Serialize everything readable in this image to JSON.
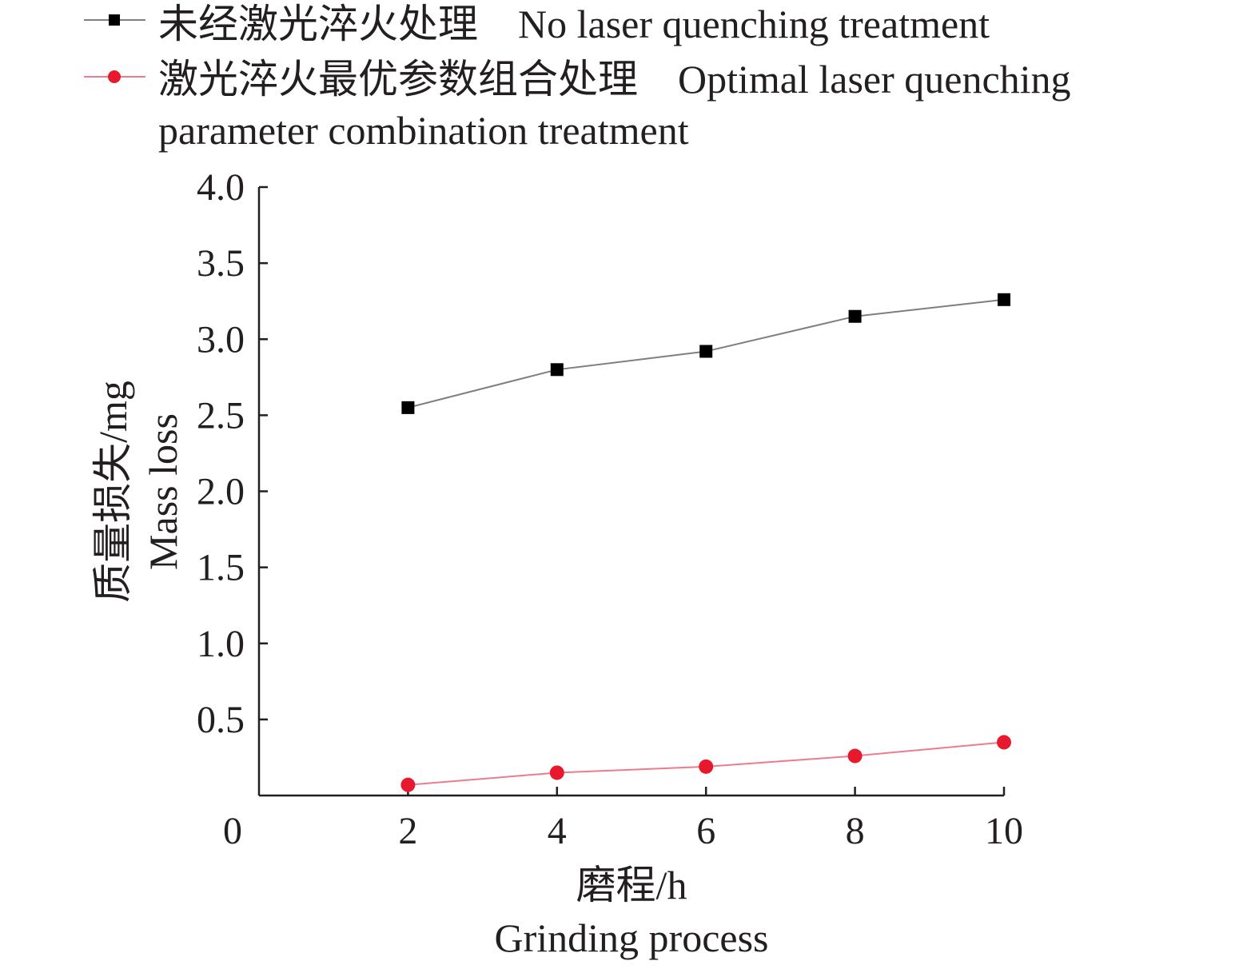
{
  "chart_data": {
    "type": "line",
    "x": [
      2,
      4,
      6,
      8,
      10
    ],
    "series": [
      {
        "name": "未经激光淬火处理　No laser quenching treatment",
        "values": [
          2.55,
          2.8,
          2.92,
          3.15,
          3.26
        ],
        "color": "#000000",
        "line_color": "#7f7f7f",
        "marker": "square"
      },
      {
        "name": "激光淬火最优参数组合处理　Optimal laser quenching parameter combination treatment",
        "values": [
          0.07,
          0.15,
          0.19,
          0.26,
          0.35
        ],
        "color": "#e8192c",
        "line_color": "#ee7b8b",
        "marker": "circle"
      }
    ],
    "legend": {
      "entries": [
        {
          "lines": [
            "未经激光淬火处理　No laser quenching treatment"
          ]
        },
        {
          "lines": [
            "激光淬火最优参数组合处理　Optimal laser quenching",
            "parameter combination treatment"
          ]
        }
      ],
      "placement": "top-left, above plot"
    },
    "xlabel": [
      "磨程/h",
      "Grinding process"
    ],
    "ylabel": [
      "质量损失/mg",
      "Mass loss"
    ],
    "xlim": [
      0,
      10
    ],
    "ylim": [
      0,
      4.0
    ],
    "x_ticks": [
      "0",
      "2",
      "4",
      "6",
      "8",
      "10"
    ],
    "y_ticks": [
      "0.5",
      "1.0",
      "1.5",
      "2.0",
      "2.5",
      "3.0",
      "3.5",
      "4.0"
    ],
    "grid": false
  }
}
